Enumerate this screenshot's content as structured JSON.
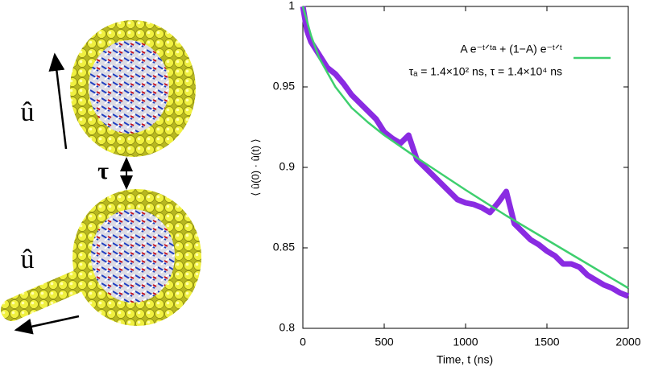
{
  "illustration": {
    "labels": [
      "û",
      "τ",
      "û"
    ]
  },
  "chart_data": {
    "type": "line",
    "xlabel": "Time, t (ns)",
    "ylabel": "⟨ û(0) · û(t) ⟩",
    "xlim": [
      0,
      2000
    ],
    "xticks": [
      0,
      500,
      1000,
      1500,
      2000
    ],
    "ylim": [
      0.8,
      1
    ],
    "yticks": [
      0.8,
      0.85,
      0.9,
      0.95,
      1
    ],
    "annotation": "τₐ = 1.4×10² ns, τ = 1.4×10⁴ ns",
    "series": [
      {
        "color": "#8a2be2",
        "width": 7,
        "x": [
          0,
          25,
          50,
          100,
          150,
          200,
          250,
          300,
          350,
          400,
          450,
          500,
          550,
          600,
          650,
          700,
          750,
          800,
          850,
          900,
          950,
          1000,
          1050,
          1100,
          1150,
          1200,
          1250,
          1300,
          1350,
          1400,
          1450,
          1500,
          1550,
          1600,
          1650,
          1700,
          1750,
          1800,
          1850,
          1900,
          1950,
          2000
        ],
        "values": [
          1.0,
          0.985,
          0.978,
          0.97,
          0.962,
          0.958,
          0.952,
          0.945,
          0.94,
          0.935,
          0.93,
          0.922,
          0.918,
          0.915,
          0.92,
          0.905,
          0.9,
          0.895,
          0.89,
          0.885,
          0.88,
          0.878,
          0.877,
          0.875,
          0.872,
          0.878,
          0.885,
          0.865,
          0.86,
          0.855,
          0.852,
          0.848,
          0.845,
          0.84,
          0.84,
          0.838,
          0.833,
          0.83,
          0.827,
          0.825,
          0.822,
          0.82
        ]
      },
      {
        "name": "A e⁻ᵗᐟᵗᵃ + (1−A) e⁻ᵗᐟᵗ",
        "color": "#3ecf6e",
        "width": 2.5,
        "x": [
          0,
          50,
          100,
          200,
          300,
          400,
          500,
          700,
          1000,
          1250,
          1500,
          1750,
          2000
        ],
        "values": [
          1.0,
          0.982,
          0.968,
          0.95,
          0.937,
          0.928,
          0.92,
          0.906,
          0.886,
          0.87,
          0.855,
          0.84,
          0.825
        ]
      }
    ]
  }
}
